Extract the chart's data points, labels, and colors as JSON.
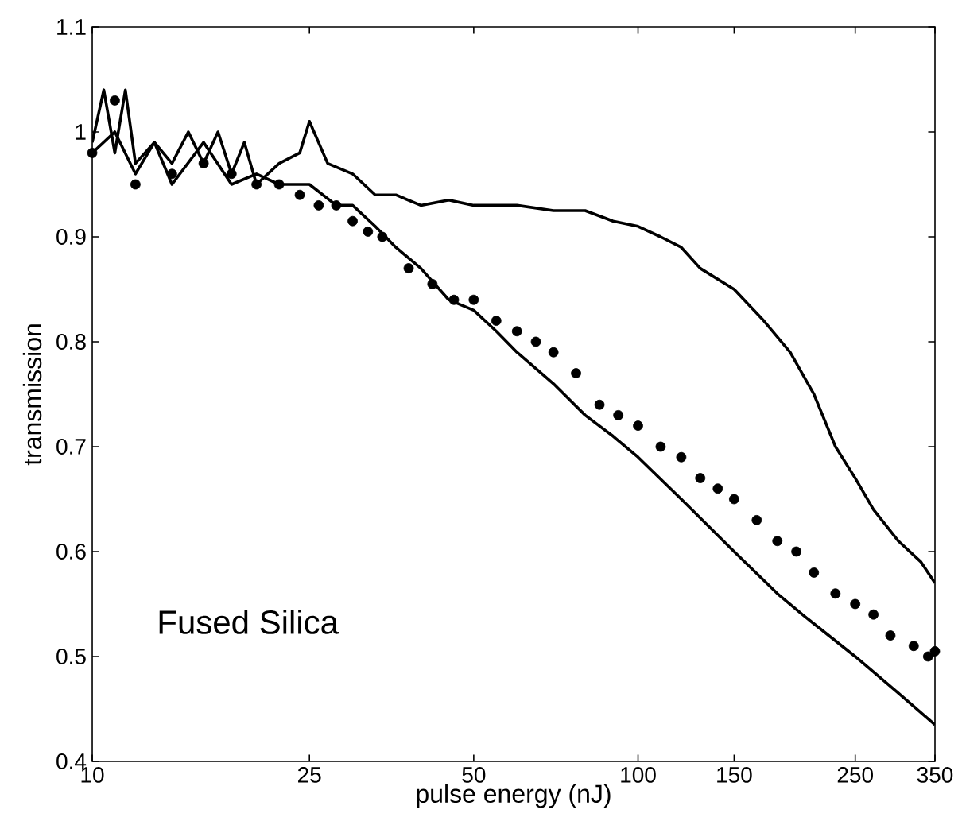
{
  "chart_data": {
    "type": "line",
    "xlabel": "pulse energy (nJ)",
    "ylabel": "transmission",
    "log": "x",
    "xlim": [
      10,
      350
    ],
    "ylim": [
      0.4,
      1.1
    ],
    "xticks": [
      10,
      25,
      50,
      100,
      150,
      250,
      350
    ],
    "yticks": [
      0.4,
      0.5,
      0.6,
      0.7,
      0.8,
      0.9,
      1,
      1.1
    ],
    "annotations": [
      "Fused Silica"
    ],
    "grid": false,
    "series": [
      {
        "color": "#000000",
        "line_style": "solid",
        "marker": "none",
        "x": [
          10,
          10.5,
          11,
          11.5,
          12,
          13,
          14,
          15,
          16,
          17,
          18,
          19,
          20,
          22,
          24,
          25,
          27,
          30,
          33,
          36,
          40,
          45,
          50,
          55,
          60,
          70,
          80,
          90,
          100,
          110,
          120,
          130,
          150,
          170,
          190,
          210,
          230,
          250,
          270,
          300,
          330,
          350
        ],
        "values": [
          0.99,
          1.04,
          0.98,
          1.04,
          0.97,
          0.99,
          0.97,
          1.0,
          0.97,
          1.0,
          0.96,
          0.99,
          0.95,
          0.97,
          0.98,
          1.01,
          0.97,
          0.96,
          0.94,
          0.94,
          0.93,
          0.935,
          0.93,
          0.93,
          0.93,
          0.925,
          0.925,
          0.915,
          0.91,
          0.9,
          0.89,
          0.87,
          0.85,
          0.82,
          0.79,
          0.75,
          0.7,
          0.67,
          0.64,
          0.61,
          0.59,
          0.57
        ]
      },
      {
        "color": "#000000",
        "line_style": "solid",
        "marker": "none",
        "x": [
          10,
          11,
          12,
          13,
          14,
          16,
          18,
          20,
          22,
          25,
          28,
          30,
          33,
          36,
          40,
          45,
          50,
          55,
          60,
          70,
          80,
          90,
          100,
          120,
          150,
          180,
          200,
          250,
          300,
          350
        ],
        "values": [
          0.98,
          1.0,
          0.96,
          0.99,
          0.95,
          0.99,
          0.95,
          0.96,
          0.95,
          0.95,
          0.93,
          0.93,
          0.91,
          0.89,
          0.87,
          0.84,
          0.83,
          0.81,
          0.79,
          0.76,
          0.73,
          0.71,
          0.69,
          0.65,
          0.6,
          0.56,
          0.54,
          0.5,
          0.465,
          0.435
        ]
      },
      {
        "type": "scatter",
        "color": "#000000",
        "marker": "circle",
        "x": [
          10,
          11,
          12,
          14,
          16,
          18,
          20,
          22,
          24,
          26,
          28,
          30,
          32,
          34,
          38,
          42,
          46,
          50,
          55,
          60,
          65,
          70,
          77,
          85,
          92,
          100,
          110,
          120,
          130,
          140,
          150,
          165,
          180,
          195,
          210,
          230,
          250,
          270,
          290,
          320,
          340,
          350
        ],
        "values": [
          0.98,
          1.03,
          0.95,
          0.96,
          0.97,
          0.96,
          0.95,
          0.95,
          0.94,
          0.93,
          0.93,
          0.915,
          0.905,
          0.9,
          0.87,
          0.855,
          0.84,
          0.84,
          0.82,
          0.81,
          0.8,
          0.79,
          0.77,
          0.74,
          0.73,
          0.72,
          0.7,
          0.69,
          0.67,
          0.66,
          0.65,
          0.63,
          0.61,
          0.6,
          0.58,
          0.56,
          0.55,
          0.54,
          0.52,
          0.51,
          0.5,
          0.505
        ]
      }
    ]
  }
}
